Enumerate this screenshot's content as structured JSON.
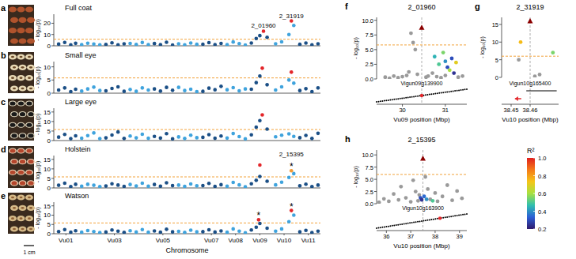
{
  "chart_data": [
    {
      "type": "scatter",
      "label": "a",
      "title": "Full coat",
      "y_label": "- log₁₀(p)",
      "xlim": [
        0.5,
        11.5
      ],
      "ylim": [
        0,
        28
      ],
      "yticks": [
        0,
        10,
        20
      ],
      "tick_labels": "y",
      "threshold": 5.8,
      "series": [
        {
          "color": "#1b4f86",
          "x": [
            0.7,
            0.95,
            1.2,
            1.4,
            2.65,
            2.9,
            3.15,
            3.4,
            4.65,
            4.9,
            5.15,
            5.4,
            6.65,
            6.9,
            7.15,
            7.4,
            8.65,
            8.85,
            9.0,
            9.3,
            10.65,
            10.9,
            11.15,
            11.4
          ],
          "values": [
            1.5,
            3.0,
            0.8,
            2.2,
            1.2,
            2.6,
            0.9,
            1.8,
            2.0,
            1.1,
            3.2,
            0.7,
            1.4,
            2.8,
            1.0,
            2.1,
            2.5,
            6.5,
            9.0,
            7.5,
            1.3,
            2.4,
            0.9,
            1.7
          ]
        },
        {
          "color": "#3fa3dd",
          "x": [
            1.65,
            1.9,
            2.15,
            2.4,
            3.65,
            3.9,
            4.15,
            4.4,
            5.65,
            5.9,
            6.15,
            6.4,
            7.65,
            7.9,
            8.15,
            8.4,
            9.65,
            9.9,
            10.2,
            10.4
          ],
          "values": [
            1.0,
            2.3,
            1.6,
            0.8,
            2.1,
            1.2,
            2.9,
            1.0,
            1.7,
            0.9,
            2.5,
            1.3,
            1.1,
            3.4,
            1.9,
            0.7,
            1.8,
            3.5,
            10.0,
            18.0
          ]
        },
        {
          "color": "#e3262a",
          "x": [
            9.15,
            10.3
          ],
          "values": [
            13.0,
            22.0
          ]
        }
      ],
      "annotations": [
        {
          "text": "2_01960",
          "x": 9.15,
          "y": 13.0
        },
        {
          "text": "2_31919",
          "x": 10.3,
          "y": 22.0
        }
      ]
    },
    {
      "type": "scatter",
      "label": "b",
      "title": "Small eye",
      "y_label": "- log₁₀(p)",
      "xlim": [
        0.5,
        11.5
      ],
      "ylim": [
        0,
        12
      ],
      "yticks": [
        0,
        5,
        10
      ],
      "tick_labels": "y",
      "threshold": 5.8,
      "series": [
        {
          "color": "#1b4f86",
          "x": [
            0.7,
            0.95,
            1.2,
            1.4,
            2.65,
            2.9,
            3.15,
            3.4,
            4.65,
            4.9,
            5.15,
            5.4,
            6.65,
            6.9,
            7.15,
            7.4,
            8.65,
            8.85,
            9.0,
            9.3,
            10.65,
            10.9,
            11.15,
            11.4
          ],
          "values": [
            1.2,
            2.0,
            0.6,
            1.5,
            0.9,
            1.8,
            2.4,
            0.7,
            1.6,
            0.8,
            2.2,
            1.1,
            0.7,
            1.9,
            1.3,
            2.6,
            1.5,
            4.0,
            6.5,
            3.2,
            1.0,
            1.7,
            0.6,
            2.0
          ]
        },
        {
          "color": "#3fa3dd",
          "x": [
            1.65,
            1.9,
            2.15,
            2.4,
            3.65,
            3.9,
            4.15,
            4.4,
            5.65,
            5.9,
            6.15,
            6.4,
            7.65,
            7.9,
            8.15,
            8.4,
            9.65,
            9.9,
            10.2,
            10.4
          ],
          "values": [
            0.8,
            1.6,
            2.3,
            1.0,
            1.4,
            0.7,
            2.0,
            1.2,
            2.2,
            1.0,
            1.5,
            0.6,
            1.3,
            2.1,
            0.9,
            1.6,
            1.2,
            2.4,
            5.0,
            3.8
          ]
        },
        {
          "color": "#e3262a",
          "x": [
            9.1,
            10.3
          ],
          "values": [
            9.5,
            8.0
          ]
        }
      ]
    },
    {
      "type": "scatter",
      "label": "c",
      "title": "Large eye",
      "y_label": "- log₁₀(p)",
      "xlim": [
        0.5,
        11.5
      ],
      "ylim": [
        0,
        17
      ],
      "yticks": [
        0,
        5,
        10,
        15
      ],
      "tick_labels": "y",
      "threshold": 5.8,
      "series": [
        {
          "color": "#1b4f86",
          "x": [
            0.7,
            0.95,
            1.2,
            1.4,
            2.65,
            2.9,
            3.15,
            3.4,
            4.65,
            4.9,
            5.15,
            5.4,
            6.65,
            6.9,
            7.15,
            7.4,
            8.65,
            8.85,
            9.0,
            9.3,
            10.65,
            10.9,
            11.15,
            11.4
          ],
          "values": [
            1.8,
            3.2,
            1.0,
            2.5,
            1.4,
            2.9,
            4.5,
            1.1,
            2.2,
            1.3,
            3.6,
            0.9,
            1.7,
            3.1,
            1.2,
            2.4,
            3.0,
            7.0,
            10.5,
            6.0,
            1.5,
            2.7,
            1.1,
            3.8
          ]
        },
        {
          "color": "#3fa3dd",
          "x": [
            1.65,
            1.9,
            2.15,
            2.4,
            3.65,
            3.9,
            4.15,
            4.4,
            5.65,
            5.9,
            6.15,
            6.4,
            7.65,
            7.9,
            8.15,
            8.4,
            9.65,
            9.9,
            10.2,
            10.4
          ],
          "values": [
            1.2,
            2.6,
            4.0,
            1.0,
            2.4,
            1.4,
            3.3,
            1.2,
            1.9,
            1.1,
            2.8,
            1.5,
            1.3,
            3.7,
            2.1,
            0.9,
            2.0,
            2.8,
            3.5,
            2.2
          ]
        },
        {
          "color": "#e3262a",
          "x": [
            9.1
          ],
          "values": [
            13.5
          ]
        }
      ]
    },
    {
      "type": "scatter",
      "label": "d",
      "title": "Holstein",
      "y_label": "- log₁₀(p)",
      "xlim": [
        0.5,
        11.5
      ],
      "ylim": [
        0,
        17
      ],
      "yticks": [
        0,
        5,
        10,
        15
      ],
      "tick_labels": "y",
      "threshold": 5.8,
      "series": [
        {
          "color": "#1b4f86",
          "x": [
            0.7,
            0.95,
            1.2,
            1.4,
            2.65,
            2.9,
            3.15,
            3.4,
            4.65,
            4.9,
            5.15,
            5.4,
            6.65,
            6.9,
            7.15,
            7.4,
            8.65,
            8.85,
            9.0,
            9.3,
            10.65,
            10.9,
            11.15,
            11.4
          ],
          "values": [
            1.4,
            2.5,
            0.7,
            1.9,
            1.0,
            2.2,
            1.5,
            0.8,
            1.8,
            0.9,
            2.7,
            1.2,
            1.2,
            2.4,
            0.8,
            1.7,
            2.2,
            4.0,
            6.0,
            3.5,
            1.1,
            2.0,
            0.7,
            1.5
          ]
        },
        {
          "color": "#3fa3dd",
          "x": [
            1.65,
            1.9,
            2.15,
            2.4,
            3.65,
            3.9,
            4.15,
            4.4,
            5.65,
            5.9,
            6.15,
            6.4,
            7.65,
            7.9,
            8.15,
            8.4,
            9.65,
            9.9,
            10.2,
            10.4
          ],
          "values": [
            0.9,
            1.9,
            1.4,
            0.7,
            1.8,
            1.0,
            2.5,
            0.9,
            1.5,
            0.8,
            2.1,
            1.1,
            0.9,
            2.9,
            1.6,
            0.6,
            1.6,
            3.0,
            5.5,
            7.5
          ]
        },
        {
          "color": "#e3262a",
          "x": [
            9.0
          ],
          "values": [
            12.0
          ]
        },
        {
          "color": "#f39a33",
          "x": [
            10.3
          ],
          "values": [
            9.0
          ]
        }
      ],
      "annotations": [
        {
          "text": "*",
          "x": 10.3,
          "y": 9.0
        },
        {
          "text": "2_15395",
          "x": 10.3,
          "y": 15.0
        }
      ]
    },
    {
      "type": "scatter",
      "label": "e",
      "title": "Watson",
      "y_label": "- log₁₀(p)",
      "x_label": "Chromosome",
      "xlim": [
        0.5,
        11.5
      ],
      "ylim": [
        0,
        17
      ],
      "yticks": [
        0,
        5,
        10,
        15
      ],
      "threshold": 5.8,
      "xticks": [
        {
          "value": 1,
          "label": "Vu01"
        },
        {
          "value": 3,
          "label": "Vu03"
        },
        {
          "value": 5,
          "label": "Vu05"
        },
        {
          "value": 7,
          "label": "Vu07"
        },
        {
          "value": 8,
          "label": "Vu08"
        },
        {
          "value": 9,
          "label": "Vu09"
        },
        {
          "value": 10,
          "label": "Vu10"
        },
        {
          "value": 11,
          "label": "Vu11"
        }
      ],
      "series": [
        {
          "color": "#1b4f86",
          "x": [
            0.7,
            0.95,
            1.2,
            1.4,
            2.65,
            2.9,
            3.15,
            3.4,
            4.65,
            4.9,
            5.15,
            5.4,
            6.65,
            6.9,
            7.15,
            7.4,
            8.65,
            8.85,
            9.0,
            9.3,
            10.65,
            10.9,
            11.15,
            11.4
          ],
          "values": [
            1.2,
            2.2,
            0.8,
            1.6,
            0.9,
            2.0,
            1.4,
            0.7,
            1.5,
            0.8,
            2.4,
            1.0,
            1.1,
            2.1,
            0.9,
            1.5,
            2.0,
            3.5,
            5.5,
            3.0,
            1.0,
            1.8,
            0.6,
            1.4
          ]
        },
        {
          "color": "#3fa3dd",
          "x": [
            1.65,
            1.9,
            2.15,
            2.4,
            3.65,
            3.9,
            4.15,
            4.4,
            5.65,
            5.9,
            6.15,
            6.4,
            7.65,
            7.9,
            8.15,
            8.4,
            9.65,
            9.9,
            10.2,
            10.4
          ],
          "values": [
            0.8,
            1.7,
            1.2,
            0.6,
            1.6,
            0.9,
            2.2,
            0.8,
            1.3,
            0.7,
            1.9,
            1.0,
            0.8,
            2.6,
            1.4,
            0.5,
            1.4,
            2.6,
            6.5,
            10.0
          ]
        },
        {
          "color": "#e3262a",
          "x": [
            8.95,
            10.3
          ],
          "values": [
            7.5,
            12.5
          ]
        }
      ],
      "annotations": [
        {
          "text": "*",
          "x": 8.95,
          "y": 7.5
        },
        {
          "text": "*",
          "x": 10.3,
          "y": 12.5
        }
      ]
    },
    {
      "type": "scatter",
      "label": "f",
      "title": "2_01960",
      "y_label": "- log₁₀(p)",
      "x_label": "Vu09 position (Mbp)",
      "xlim": [
        29.4,
        31.5
      ],
      "ylim": [
        0,
        10.5
      ],
      "yticks": [
        {
          "value": 0,
          "label": "0.0"
        },
        2.5,
        {
          "value": 5,
          "label": "5.0"
        },
        7.5,
        {
          "value": 10,
          "label": "10.0"
        }
      ],
      "xticks": [
        30,
        31
      ],
      "threshold": 5.8,
      "x": [
        29.6,
        29.7,
        29.8,
        29.9,
        30.0,
        30.1,
        30.15,
        30.2,
        30.25,
        30.3,
        30.35,
        30.55,
        30.6,
        30.7,
        30.8,
        30.9,
        31.0,
        31.3,
        31.4,
        30.75,
        30.85,
        30.95,
        31.0,
        31.05,
        31.1,
        31.15,
        31.2,
        31.25
      ],
      "values": [
        0.3,
        0.1,
        0.5,
        0.2,
        0.4,
        0.6,
        1.2,
        7.8,
        6.2,
        5.0,
        0.8,
        0.3,
        0.5,
        1.0,
        0.4,
        0.2,
        0.6,
        0.3,
        0.5,
        3.8,
        2.5,
        4.5,
        3.0,
        2.0,
        1.5,
        3.5,
        1.0,
        2.8
      ],
      "r2": [
        null,
        null,
        null,
        null,
        null,
        null,
        null,
        null,
        null,
        null,
        null,
        null,
        null,
        null,
        null,
        null,
        null,
        null,
        null,
        0.45,
        0.5,
        0.55,
        0.4,
        0.3,
        0.6,
        0.3,
        0.25,
        0.7
      ],
      "lead": {
        "x": 30.45,
        "value": 8.8,
        "marker": "triangle"
      },
      "gene": "Vigun09g139900",
      "gene_position": 30.45
    },
    {
      "type": "scatter",
      "label": "g",
      "title": "2_31919",
      "y_label": "- log₁₀(p)",
      "x_label": "Vu10 position (Mbp)",
      "xlim": [
        38.445,
        38.475
      ],
      "ylim": [
        0,
        17
      ],
      "yticks": [
        0,
        5,
        10,
        15
      ],
      "xticks": [
        38.45,
        38.46
      ],
      "threshold": 6,
      "x": [
        38.454,
        38.455,
        38.4625,
        38.465,
        38.472
      ],
      "values": [
        5.0,
        10.0,
        0.3,
        0.8,
        7.0
      ],
      "r2": [
        null,
        0.75,
        null,
        null,
        0.55
      ],
      "lead": {
        "x": 38.46,
        "value": 16,
        "marker": "triangle"
      },
      "gene": "Vigun10g165400",
      "gene_position": 38.452,
      "gene_span": [
        38.458,
        38.474
      ]
    },
    {
      "type": "scatter",
      "label": "h",
      "title": "2_15395",
      "y_label": "- log₁₀(p)",
      "x_label": "Vu10 position (Mbp)",
      "xlim": [
        35.6,
        39.3
      ],
      "ylim": [
        0,
        11
      ],
      "yticks": [
        {
          "value": 0,
          "label": "0.0"
        },
        2.5,
        {
          "value": 5,
          "label": "5.0"
        },
        7.5,
        {
          "value": 10,
          "label": "10.0"
        }
      ],
      "xticks": [
        36,
        37,
        38,
        39
      ],
      "threshold": 6,
      "x": [
        35.7,
        35.9,
        36.1,
        36.3,
        36.5,
        36.6,
        36.8,
        37.0,
        37.1,
        37.2,
        37.3,
        37.35,
        37.6,
        37.7,
        37.8,
        38.0,
        38.1,
        38.3,
        38.5,
        38.7,
        38.9,
        39.1,
        37.4,
        37.45,
        37.55,
        37.65,
        37.9
      ],
      "values": [
        0.3,
        1.0,
        0.5,
        2.0,
        0.8,
        3.5,
        1.2,
        0.4,
        4.8,
        2.5,
        0.6,
        1.8,
        5.5,
        3.0,
        0.9,
        2.2,
        0.5,
        1.5,
        3.8,
        0.7,
        2.6,
        1.1,
        1.2,
        0.8,
        1.5,
        0.9,
        0.6
      ],
      "r2": [
        null,
        null,
        null,
        null,
        null,
        null,
        null,
        null,
        null,
        null,
        null,
        null,
        null,
        null,
        null,
        null,
        null,
        null,
        null,
        null,
        null,
        null,
        0.3,
        0.25,
        0.35,
        0.4,
        0.5
      ],
      "lead": {
        "x": 37.5,
        "value": 9.3,
        "marker": "triangle"
      },
      "gene": "Vigun10g163900",
      "gene_position": 38.2
    }
  ],
  "color_bar": {
    "title": "R²",
    "range": [
      0.2,
      1.0
    ],
    "ticks": [
      0.2,
      0.4,
      0.6,
      0.8,
      {
        "value": 1,
        "label": "1.0"
      }
    ]
  },
  "scale_bar": "1 cm"
}
